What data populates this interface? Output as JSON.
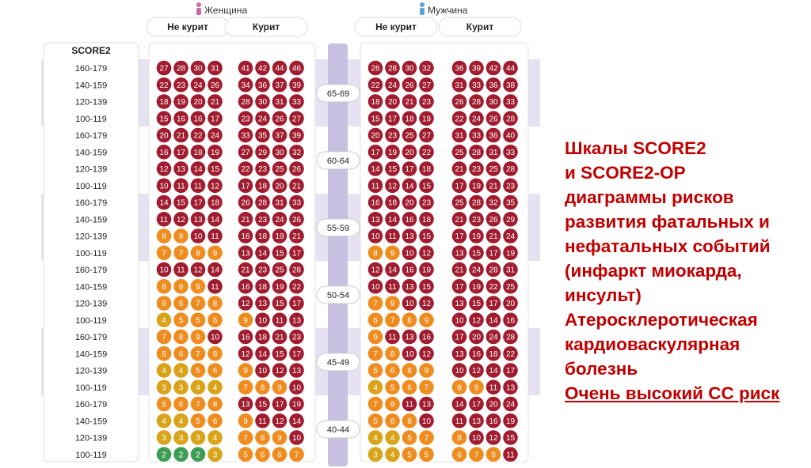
{
  "chart_data": {
    "type": "table",
    "row_header": "SCORE2",
    "sex_labels": {
      "women": "Женщина",
      "men": "Мужчина"
    },
    "column_labels": [
      "Не курит",
      "Курит",
      "Не курит",
      "Курит"
    ],
    "sbp_levels": [
      "160-179",
      "140-159",
      "120-139",
      "100-119"
    ],
    "age_groups": [
      "65-69",
      "60-64",
      "55-59",
      "50-54",
      "45-49",
      "40-44"
    ],
    "risk_colors": {
      "red": "#a01c2e",
      "orange": "#ef8c1f",
      "yellow": "#d9a31a",
      "green": "#3d9d55"
    },
    "values": [
      [
        [
          27,
          28,
          30,
          31
        ],
        [
          41,
          42,
          44,
          46
        ],
        [
          26,
          28,
          30,
          32
        ],
        [
          36,
          39,
          42,
          44
        ]
      ],
      [
        [
          22,
          23,
          24,
          26
        ],
        [
          34,
          36,
          37,
          39
        ],
        [
          22,
          24,
          26,
          27
        ],
        [
          31,
          33,
          36,
          38
        ]
      ],
      [
        [
          18,
          19,
          20,
          21
        ],
        [
          28,
          30,
          31,
          33
        ],
        [
          18,
          20,
          21,
          23
        ],
        [
          26,
          28,
          30,
          33
        ]
      ],
      [
        [
          15,
          16,
          16,
          17
        ],
        [
          23,
          24,
          26,
          27
        ],
        [
          15,
          17,
          18,
          19
        ],
        [
          22,
          24,
          26,
          28
        ]
      ],
      [
        [
          20,
          21,
          22,
          24
        ],
        [
          33,
          35,
          37,
          39
        ],
        [
          20,
          23,
          25,
          27
        ],
        [
          31,
          33,
          36,
          40
        ]
      ],
      [
        [
          16,
          17,
          18,
          19
        ],
        [
          27,
          29,
          30,
          32
        ],
        [
          17,
          19,
          20,
          22
        ],
        [
          25,
          28,
          31,
          33
        ]
      ],
      [
        [
          12,
          13,
          14,
          15
        ],
        [
          22,
          23,
          25,
          26
        ],
        [
          14,
          15,
          17,
          18
        ],
        [
          21,
          23,
          25,
          28
        ]
      ],
      [
        [
          10,
          11,
          11,
          12
        ],
        [
          17,
          18,
          20,
          21
        ],
        [
          11,
          12,
          14,
          15
        ],
        [
          17,
          19,
          21,
          23
        ]
      ],
      [
        [
          14,
          15,
          17,
          18
        ],
        [
          26,
          28,
          31,
          33
        ],
        [
          16,
          18,
          20,
          23
        ],
        [
          25,
          28,
          32,
          35
        ]
      ],
      [
        [
          11,
          12,
          13,
          14
        ],
        [
          21,
          23,
          24,
          26
        ],
        [
          13,
          14,
          16,
          18
        ],
        [
          21,
          23,
          26,
          29
        ]
      ],
      [
        [
          8,
          9,
          10,
          11
        ],
        [
          16,
          18,
          19,
          21
        ],
        [
          10,
          11,
          13,
          15
        ],
        [
          17,
          19,
          21,
          24
        ]
      ],
      [
        [
          7,
          7,
          8,
          9
        ],
        [
          13,
          14,
          15,
          17
        ],
        [
          8,
          9,
          10,
          12
        ],
        [
          13,
          15,
          17,
          19
        ]
      ],
      [
        [
          10,
          11,
          12,
          14
        ],
        [
          21,
          23,
          25,
          28
        ],
        [
          12,
          14,
          16,
          19
        ],
        [
          21,
          24,
          28,
          31
        ]
      ],
      [
        [
          8,
          9,
          9,
          11
        ],
        [
          16,
          18,
          19,
          22
        ],
        [
          10,
          11,
          13,
          15
        ],
        [
          17,
          19,
          22,
          25
        ]
      ],
      [
        [
          6,
          6,
          7,
          8
        ],
        [
          12,
          13,
          15,
          17
        ],
        [
          7,
          9,
          10,
          12
        ],
        [
          13,
          15,
          17,
          20
        ]
      ],
      [
        [
          4,
          5,
          5,
          6
        ],
        [
          9,
          10,
          11,
          13
        ],
        [
          6,
          7,
          8,
          9
        ],
        [
          10,
          12,
          14,
          16
        ]
      ],
      [
        [
          7,
          8,
          9,
          10
        ],
        [
          16,
          18,
          21,
          23
        ],
        [
          9,
          11,
          13,
          16
        ],
        [
          17,
          20,
          24,
          28
        ]
      ],
      [
        [
          5,
          6,
          7,
          8
        ],
        [
          12,
          14,
          15,
          17
        ],
        [
          7,
          8,
          10,
          12
        ],
        [
          13,
          16,
          18,
          22
        ]
      ],
      [
        [
          4,
          4,
          5,
          6
        ],
        [
          9,
          10,
          12,
          13
        ],
        [
          5,
          6,
          8,
          9
        ],
        [
          10,
          12,
          14,
          17
        ]
      ],
      [
        [
          3,
          3,
          4,
          4
        ],
        [
          7,
          8,
          9,
          10
        ],
        [
          4,
          5,
          6,
          7
        ],
        [
          8,
          9,
          11,
          13
        ]
      ],
      [
        [
          5,
          6,
          7,
          8
        ],
        [
          13,
          15,
          17,
          19
        ],
        [
          7,
          9,
          11,
          13
        ],
        [
          14,
          17,
          20,
          24
        ]
      ],
      [
        [
          4,
          4,
          5,
          6
        ],
        [
          9,
          11,
          12,
          14
        ],
        [
          5,
          6,
          8,
          10
        ],
        [
          11,
          13,
          16,
          19
        ]
      ],
      [
        [
          3,
          3,
          3,
          4
        ],
        [
          7,
          8,
          9,
          10
        ],
        [
          4,
          4,
          5,
          7
        ],
        [
          8,
          10,
          12,
          15
        ]
      ],
      [
        [
          2,
          2,
          2,
          3
        ],
        [
          5,
          6,
          6,
          7
        ],
        [
          3,
          4,
          5,
          5
        ],
        [
          6,
          7,
          9,
          11
        ]
      ]
    ]
  },
  "side_text": {
    "line1": "Шкалы SCORE2",
    "line2": "и SCORE2-OP",
    "line3": "диаграммы рисков",
    "line4": "развития фатальных и",
    "line5": "нефатальных событий",
    "line6": "(инфаркт миокарда,",
    "line7": "инсульт)",
    "line8": "Атеросклеротическая",
    "line9": "кардиоваскулярная",
    "line10": "болезнь",
    "line11": "Очень высокий СС риск"
  }
}
